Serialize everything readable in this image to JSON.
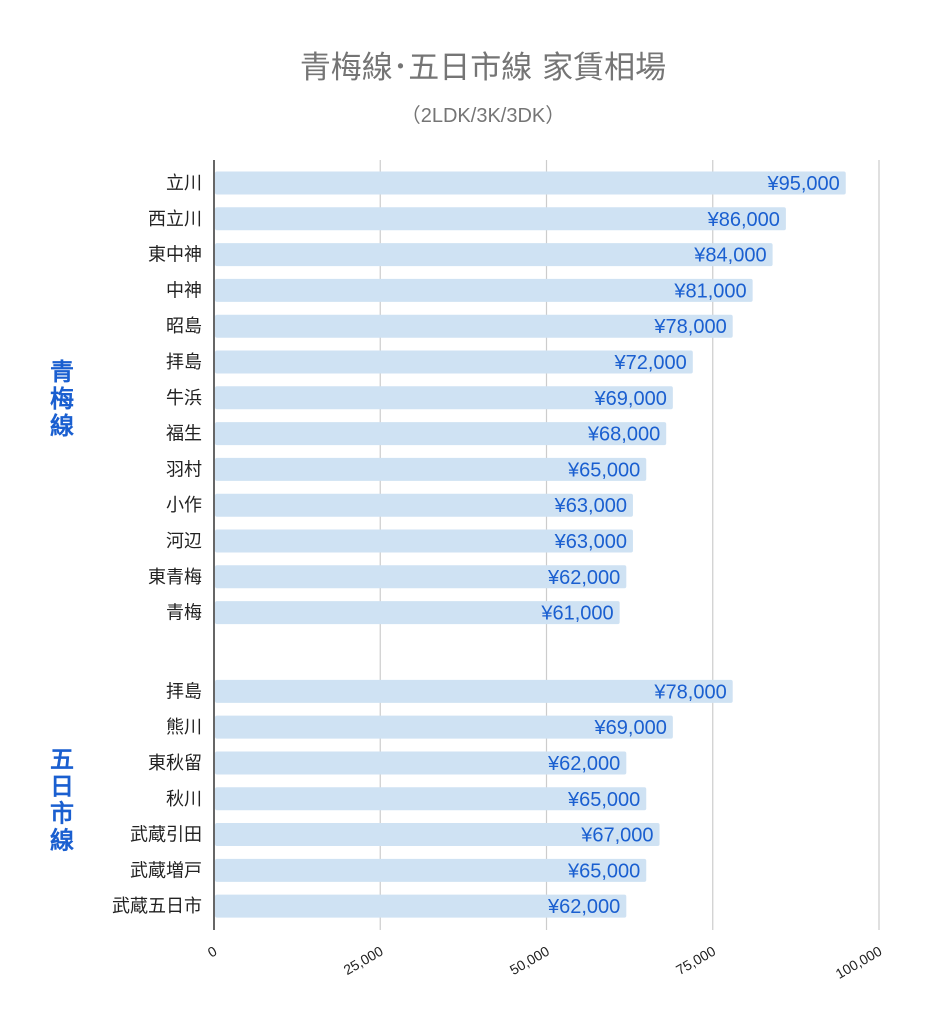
{
  "chart_data": {
    "type": "bar",
    "orientation": "horizontal",
    "title": "青梅線･五日市線 家賃相場",
    "subtitle": "（2LDK/3K/3DK）",
    "xlim": [
      0,
      100000
    ],
    "x_ticks": [
      "0",
      "25,000",
      "50,000",
      "75,000",
      "100,000"
    ],
    "x_tick_values": [
      0,
      25000,
      50000,
      75000,
      100000
    ],
    "grid": true,
    "bar_color": "#cfe2f3",
    "label_color": "#1a5fd0",
    "groups": [
      {
        "label": "青梅線",
        "categories": [
          "立川",
          "西立川",
          "東中神",
          "中神",
          "昭島",
          "拝島",
          "牛浜",
          "福生",
          "羽村",
          "小作",
          "河辺",
          "東青梅",
          "青梅"
        ],
        "values": [
          95000,
          86000,
          84000,
          81000,
          78000,
          72000,
          69000,
          68000,
          65000,
          63000,
          63000,
          62000,
          61000
        ],
        "data_labels": [
          "¥95,000",
          "¥86,000",
          "¥84,000",
          "¥81,000",
          "¥78,000",
          "¥72,000",
          "¥69,000",
          "¥68,000",
          "¥65,000",
          "¥63,000",
          "¥63,000",
          "¥62,000",
          "¥61,000"
        ]
      },
      {
        "label": "五日市線",
        "categories": [
          "拝島",
          "熊川",
          "東秋留",
          "秋川",
          "武蔵引田",
          "武蔵増戸",
          "武蔵五日市"
        ],
        "values": [
          78000,
          69000,
          62000,
          65000,
          67000,
          65000,
          62000
        ],
        "data_labels": [
          "¥78,000",
          "¥69,000",
          "¥62,000",
          "¥65,000",
          "¥67,000",
          "¥65,000",
          "¥62,000"
        ]
      }
    ]
  }
}
